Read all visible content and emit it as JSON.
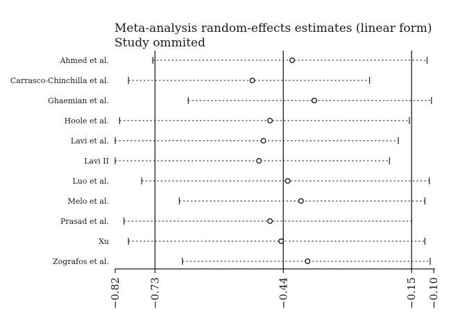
{
  "chart_data": {
    "type": "forest",
    "title_lines": [
      "Meta-analysis random-effects estimates (linear form)",
      "Study ommited"
    ],
    "xlim": [
      -0.82,
      -0.1
    ],
    "reference_lines": [
      -0.73,
      -0.44,
      -0.15
    ],
    "x_ticks": [
      {
        "value": -0.82,
        "label": "−0.82"
      },
      {
        "value": -0.73,
        "label": "−0.73"
      },
      {
        "value": -0.44,
        "label": "−0.44"
      },
      {
        "value": -0.15,
        "label": "−0.15"
      },
      {
        "value": -0.1,
        "label": "−0.10"
      }
    ],
    "studies": [
      {
        "label": "Ahmed et al.",
        "estimate": -0.42,
        "lower": -0.735,
        "upper": -0.115
      },
      {
        "label": "Carrasco-Chinchilla et al.",
        "estimate": -0.51,
        "lower": -0.79,
        "upper": -0.245
      },
      {
        "label": "Ghaemian et al.",
        "estimate": -0.37,
        "lower": -0.655,
        "upper": -0.105
      },
      {
        "label": "Hoole et al.",
        "estimate": -0.47,
        "lower": -0.81,
        "upper": -0.155
      },
      {
        "label": "Lavi et al.",
        "estimate": -0.485,
        "lower": -0.82,
        "upper": -0.18
      },
      {
        "label": "Lavi II",
        "estimate": -0.495,
        "lower": -0.82,
        "upper": -0.2
      },
      {
        "label": "Luo et al.",
        "estimate": -0.43,
        "lower": -0.76,
        "upper": -0.11
      },
      {
        "label": "Melo et al.",
        "estimate": -0.4,
        "lower": -0.675,
        "upper": -0.12
      },
      {
        "label": "Prasad et al.",
        "estimate": -0.47,
        "lower": -0.8,
        "upper": -0.15
      },
      {
        "label": "Xu",
        "estimate": -0.445,
        "lower": -0.79,
        "upper": -0.12
      },
      {
        "label": "Zografos et al.",
        "estimate": -0.385,
        "lower": -0.668,
        "upper": -0.108
      }
    ]
  }
}
